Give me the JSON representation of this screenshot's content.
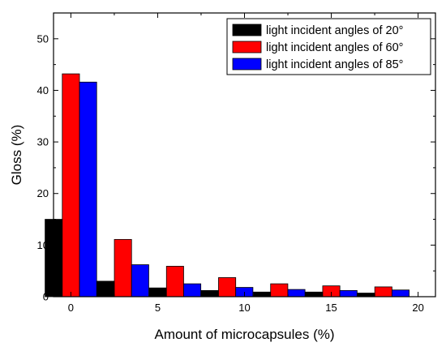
{
  "chart_data": {
    "type": "bar",
    "categories": [
      "0",
      "3",
      "6",
      "9",
      "12",
      "15",
      "18"
    ],
    "x": [
      0,
      3,
      6,
      9,
      12,
      15,
      18
    ],
    "series": [
      {
        "name": "light incident angles of 20°",
        "color": "#000000",
        "values": [
          15.0,
          3.0,
          1.7,
          1.2,
          0.9,
          0.9,
          0.7
        ]
      },
      {
        "name": "light incident angles of 60°",
        "color": "#ff0000",
        "values": [
          43.2,
          11.1,
          5.9,
          3.7,
          2.5,
          2.1,
          1.9
        ]
      },
      {
        "name": "light incident angles of 85°",
        "color": "#0000ff",
        "values": [
          41.6,
          6.2,
          2.5,
          1.8,
          1.4,
          1.2,
          1.3
        ]
      }
    ],
    "xlabel": "Amount of microcapsules (%)",
    "ylabel": "Gloss (%)",
    "xlim": [
      -1,
      21
    ],
    "ylim": [
      0,
      55
    ],
    "xticks": [
      0,
      5,
      10,
      15,
      20
    ],
    "yticks": [
      0,
      10,
      20,
      30,
      40,
      50
    ],
    "grid": false,
    "legend_position": "top-right"
  }
}
